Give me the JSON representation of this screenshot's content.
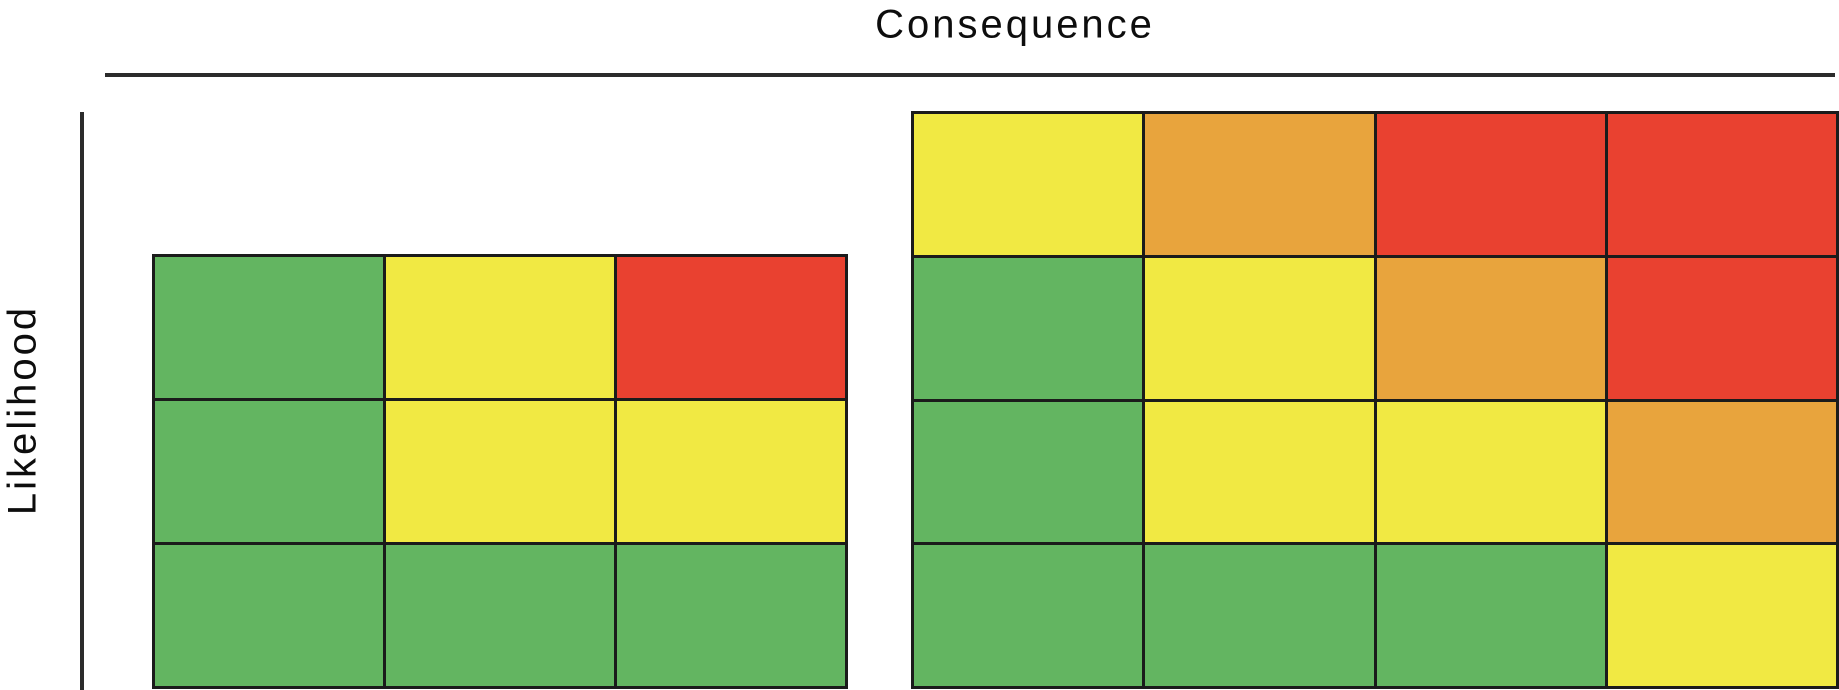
{
  "axes": {
    "x_label": "Consequence",
    "y_label": "Likelihood"
  },
  "colors": {
    "green": "#63B561",
    "yellow": "#F1E943",
    "orange": "#E8A43D",
    "red": "#E94130",
    "grid_line": "#1B1B1B",
    "axis_line": "#2B2B2B",
    "text": "#0D0D0D",
    "background": "#FFFFFF"
  },
  "chart_data": [
    {
      "type": "heatmap",
      "name": "risk-matrix-3x3",
      "rows": 3,
      "cols": 3,
      "xlabel": "Consequence",
      "ylabel": "Likelihood",
      "legend": "none",
      "cells": [
        [
          "green",
          "yellow",
          "red"
        ],
        [
          "green",
          "yellow",
          "yellow"
        ],
        [
          "green",
          "green",
          "green"
        ]
      ]
    },
    {
      "type": "heatmap",
      "name": "risk-matrix-4x4",
      "rows": 4,
      "cols": 4,
      "xlabel": "Consequence",
      "ylabel": "Likelihood",
      "legend": "none",
      "cells": [
        [
          "yellow",
          "orange",
          "red",
          "red"
        ],
        [
          "green",
          "yellow",
          "orange",
          "red"
        ],
        [
          "green",
          "yellow",
          "yellow",
          "orange"
        ],
        [
          "green",
          "green",
          "green",
          "yellow"
        ]
      ]
    }
  ]
}
